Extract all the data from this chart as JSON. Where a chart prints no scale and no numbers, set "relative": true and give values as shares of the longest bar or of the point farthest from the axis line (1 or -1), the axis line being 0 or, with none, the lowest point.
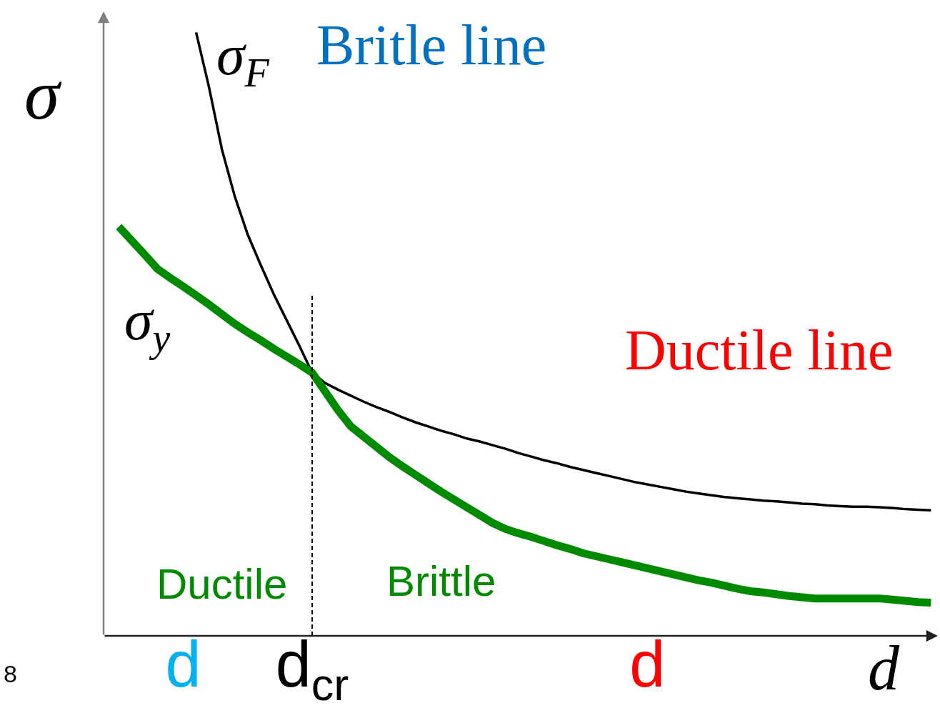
{
  "chart_data": {
    "type": "line",
    "relative": true,
    "categories": [
      null,
      null,
      null,
      null,
      null,
      "d",
      null,
      null,
      null,
      null,
      null,
      null,
      null,
      null,
      null,
      "d$_{cr}$",
      null,
      null,
      null,
      null,
      null,
      null,
      null,
      null,
      null,
      null,
      null,
      null,
      null,
      null,
      null,
      null,
      null,
      null,
      null,
      null,
      null,
      null,
      null,
      null,
      null,
      "d",
      null,
      null,
      null,
      null,
      null,
      null,
      null,
      null,
      null,
      null,
      null,
      null,
      null,
      null,
      null,
      null,
      null,
      null,
      null,
      null,
      null,
      null
    ],
    "series": [
      {
        "name": "σ$_{F}$",
        "color": "#000000",
        "values": [
          null,
          null,
          null,
          null,
          null,
          null,
          1.0,
          0.909,
          0.806,
          0.728,
          0.665,
          0.615,
          0.567,
          0.524,
          0.481,
          0.436,
          0.419,
          0.408,
          0.398,
          0.388,
          0.379,
          0.371,
          0.362,
          0.354,
          0.347,
          0.34,
          0.334,
          0.327,
          0.322,
          0.316,
          0.31,
          0.303,
          0.297,
          0.291,
          0.286,
          0.28,
          0.275,
          0.27,
          0.265,
          0.26,
          0.255,
          0.251,
          0.247,
          0.243,
          0.239,
          0.236,
          0.233,
          0.23,
          0.228,
          0.226,
          0.224,
          0.223,
          0.221,
          0.219,
          0.218,
          0.216,
          0.215,
          0.214,
          0.214,
          0.213,
          0.212,
          0.21,
          0.209,
          0.208
        ]
      },
      {
        "name": "σ$_{y}$",
        "color": "#008a00",
        "values": [
          0.678,
          0.655,
          0.632,
          0.608,
          0.593,
          0.579,
          0.564,
          0.549,
          0.533,
          0.517,
          0.503,
          0.49,
          0.476,
          0.463,
          0.45,
          0.436,
          0.405,
          0.374,
          0.347,
          0.33,
          0.313,
          0.296,
          0.281,
          0.267,
          0.253,
          0.239,
          0.226,
          0.213,
          0.2,
          0.187,
          0.177,
          0.17,
          0.164,
          0.157,
          0.15,
          0.144,
          0.137,
          0.132,
          0.127,
          0.122,
          0.117,
          0.112,
          0.107,
          0.102,
          0.097,
          0.092,
          0.088,
          0.083,
          0.078,
          0.074,
          0.072,
          0.069,
          0.066,
          0.064,
          0.062,
          0.062,
          0.062,
          0.062,
          0.062,
          0.062,
          0.06,
          0.058,
          0.056,
          0.055
        ]
      }
    ],
    "xlabel": "d",
    "ylabel": "σ",
    "annotations": [
      "Britle line",
      "Ductile line",
      "Ductile",
      "Brittle",
      "8"
    ],
    "ref_lines": [
      {
        "axis": "x",
        "value": "d$_{cr}$",
        "color": "#000000",
        "line_style": "dashed"
      }
    ],
    "legend": false,
    "tick_labels": "x",
    "marker": "none",
    "line_style": "solid"
  }
}
